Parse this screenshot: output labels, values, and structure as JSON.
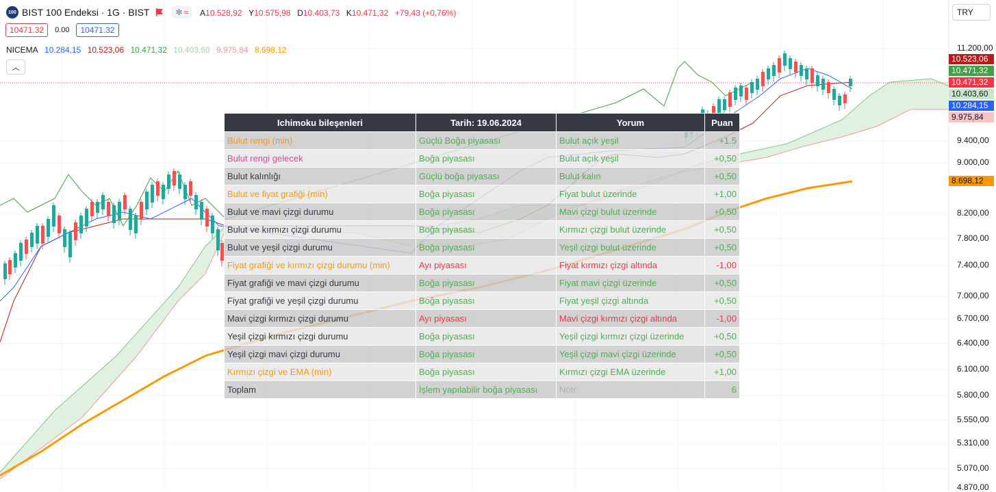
{
  "header": {
    "logo_text": "100",
    "symbol_title": "BIST 100 Endeksi · 1G · BIST",
    "ohlc": [
      {
        "label": "A",
        "value": "10.528,92"
      },
      {
        "label": "Y",
        "value": "10.575,98"
      },
      {
        "label": "D",
        "value": "10.403,73"
      },
      {
        "label": "K",
        "value": "10.471,32"
      }
    ],
    "change": "+79,43 (+0,76%)",
    "sell_price": "10471.32",
    "spread": "0.00",
    "buy_price": "10471.32",
    "currency": "TRY"
  },
  "indicator": {
    "name": "NICEMA",
    "values": [
      {
        "value": "10.284,15",
        "color": "#2962ff"
      },
      {
        "value": "10.523,06",
        "color": "#b71c1c"
      },
      {
        "value": "10.471,32",
        "color": "#43a047"
      },
      {
        "value": "10.403,60",
        "color": "#a5d6a7"
      },
      {
        "value": "9.975,84",
        "color": "#ef9a9a"
      },
      {
        "value": "8.698,12",
        "color": "#ff9800"
      }
    ]
  },
  "price_scale": {
    "labels": [
      "11.200,00",
      "9.400,00",
      "9.000,00",
      "8.200,00",
      "7.800,00",
      "7.400,00",
      "7.000,00",
      "6.700,00",
      "6.400,00",
      "6.100,00",
      "5.800,00",
      "5.550,00",
      "5.310,00",
      "5.070,00",
      "4.870,00"
    ],
    "tags": [
      {
        "value": "10.523,06",
        "color": "#b71c1c",
        "text_color": "#ffffff"
      },
      {
        "value": "10.471,32",
        "color": "#43a047",
        "text_color": "#ffffff"
      },
      {
        "value": "10.471,32",
        "color": "#f23645",
        "text_color": "#ffffff"
      },
      {
        "value": "10.403,60",
        "color": "#c8e6c9",
        "text_color": "#131722"
      },
      {
        "value": "10.284,15",
        "color": "#2962ff",
        "text_color": "#ffffff"
      },
      {
        "value": "9.975,84",
        "color": "#f8c3c3",
        "text_color": "#131722"
      },
      {
        "value": "8.698,12",
        "color": "#ff9800",
        "text_color": "#131722"
      }
    ]
  },
  "table": {
    "headers": [
      "Ichimoku bileşenleri",
      "Tarih: 19.06.2024",
      "Yorum",
      "Puan"
    ],
    "rows": [
      {
        "component": "Bulut rengi (min)",
        "c_color": "orange",
        "status": "Güçlü Boğa piyasası",
        "s_color": "green",
        "comment": "Bulut açık yeşil",
        "m_color": "green",
        "score": "+1.5",
        "p_color": "green",
        "shade": "dark"
      },
      {
        "component": "Bulut rengi gelecek",
        "c_color": "pink",
        "status": "Boğa piyasası",
        "s_color": "green",
        "comment": "Bulut açık yeşil",
        "m_color": "green",
        "score": "+0,50",
        "p_color": "green",
        "shade": "light"
      },
      {
        "component": "Bulut kalınlığı",
        "c_color": "dark",
        "status": "Güçlü boğa piyasası",
        "s_color": "green",
        "comment": "Bulut kalın",
        "m_color": "green",
        "score": "+0,50",
        "p_color": "green",
        "shade": "dark"
      },
      {
        "component": "Bulut ve fiyat grafiği (min)",
        "c_color": "orange",
        "status": "Boğa piyasası",
        "s_color": "green",
        "comment": "Fiyat bulut üzerinde",
        "m_color": "green",
        "score": "+1,00",
        "p_color": "green",
        "shade": "light"
      },
      {
        "component": "Bulut ve mavi çizgi durumu",
        "c_color": "dark",
        "status": "Boğa piyasası",
        "s_color": "green",
        "comment": "Mavi çizgi bulut üzerinde",
        "m_color": "green",
        "score": "+0,50",
        "p_color": "green",
        "shade": "dark"
      },
      {
        "component": "Bulut ve kırmızı çizgi durumu",
        "c_color": "dark",
        "status": "Boğa piyasası",
        "s_color": "green",
        "comment": "Kırmızı çizgi bulut üzerinde",
        "m_color": "green",
        "score": "+0,50",
        "p_color": "green",
        "shade": "light"
      },
      {
        "component": "Bulut ve yeşil çizgi durumu",
        "c_color": "dark",
        "status": "Boğa piyasası",
        "s_color": "green",
        "comment": "Yeşil çizgi bulut üzerinde",
        "m_color": "green",
        "score": "+0,50",
        "p_color": "green",
        "shade": "dark"
      },
      {
        "component": "Fiyat grafiği ve kırmızı çizgi durumu (min)",
        "c_color": "orange",
        "status": "Ayı piyasası",
        "s_color": "red",
        "comment": "Fiyat kırmızı çizgi altında",
        "m_color": "red",
        "score": "-1,00",
        "p_color": "red",
        "shade": "light"
      },
      {
        "component": "Fiyat grafiği ve mavi çizgi durumu",
        "c_color": "dark",
        "status": "Boğa piyasası",
        "s_color": "green",
        "comment": "Fiyat mavi çizgi üzerinde",
        "m_color": "green",
        "score": "+0,50",
        "p_color": "green",
        "shade": "dark"
      },
      {
        "component": "Fiyat grafiği ve yeşil çizgi  durumu",
        "c_color": "dark",
        "status": "Boğa piyasası",
        "s_color": "green",
        "comment": "Fiyat yeşil çizgi altında",
        "m_color": "green",
        "score": "+0,50",
        "p_color": "green",
        "shade": "light"
      },
      {
        "component": "Mavi çizgi kırmızı çizgi durumu",
        "c_color": "dark",
        "status": "Ayı piyasası",
        "s_color": "red",
        "comment": "Mavi çizgi kırmızı çizgi altında",
        "m_color": "red",
        "score": "-1,00",
        "p_color": "red",
        "shade": "dark"
      },
      {
        "component": "Yeşil çizgi kırmızı çizgi durumu",
        "c_color": "dark",
        "status": "Boğa piyasası",
        "s_color": "green",
        "comment": "Yeşil çizgi kırmızı çizgi üzerinde",
        "m_color": "green",
        "score": "+0,50",
        "p_color": "green",
        "shade": "light"
      },
      {
        "component": "Yeşil çizgi mavi çizgi durumu",
        "c_color": "dark",
        "status": "Boğa piyasası",
        "s_color": "green",
        "comment": "Yeşil çizgi mavi çizgi üzerinde",
        "m_color": "green",
        "score": "+0,50",
        "p_color": "green",
        "shade": "dark"
      },
      {
        "component": "Kırmızı çizgi ve EMA (min)",
        "c_color": "orange",
        "status": "Boğa piyasası",
        "s_color": "green",
        "comment": "Kırmızı çizgi EMA üzerinde",
        "m_color": "green",
        "score": "+1,00",
        "p_color": "green",
        "shade": "light"
      },
      {
        "component": "Toplam",
        "c_color": "dark",
        "status": "İşlem yapılabilir boğa piyasası",
        "s_color": "green",
        "comment": "Nötr",
        "m_color": "grey",
        "score": "6",
        "p_color": "green",
        "shade": "dark"
      }
    ]
  },
  "colors": {
    "up_candle": "#26a69a",
    "down_candle": "#ef5350",
    "tenkan": "#2962ff",
    "kijun": "#b71c1c",
    "chikou": "#43a047",
    "cloud_bull": "#c8e6c9",
    "ema": "#ff9800"
  }
}
